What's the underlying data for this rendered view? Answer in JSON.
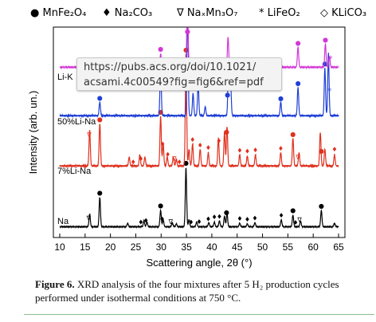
{
  "tooltip": {
    "line1": "https://pubs.acs.org/doi/10.1021/",
    "line2": "acsami.4c00549?fig=fig6&ref=pdf"
  },
  "caption": {
    "label": "Figure 6.",
    "text": "XRD analysis of the four mixtures after 5 H₂ production cycles performed under isothermal conditions at 750 °C."
  },
  "colors": {
    "Na": "#000000",
    "7%Li-Na": "#e0301e",
    "50%Li-Na": "#1f3fd6",
    "Li-K": "#d336d6",
    "separator": "#8fbf8f"
  },
  "chart_data": {
    "type": "line",
    "xlabel": "Scattering angle, 2θ (°)",
    "ylabel": "Intensity (arb. un.)",
    "xlim": [
      10,
      65
    ],
    "xticks": [
      10,
      15,
      20,
      25,
      30,
      35,
      40,
      45,
      50,
      55,
      60,
      65
    ],
    "legend": [
      {
        "marker": "●",
        "label": "MnFe₂O₄"
      },
      {
        "marker": "♦",
        "label": "Na₂CO₃"
      },
      {
        "marker": "∇",
        "label": "NaₓMn₃O₇"
      },
      {
        "marker": "*",
        "label": "LiFeO₂"
      },
      {
        "marker": "◇",
        "label": "KLiCO₃"
      }
    ],
    "series": [
      {
        "name": "Na",
        "peaks": [
          [
            15.9,
            0.22
          ],
          [
            17.9,
            0.5
          ],
          [
            23.4,
            0.06
          ],
          [
            26.6,
            0.1
          ],
          [
            27.2,
            0.08
          ],
          [
            29.9,
            0.28
          ],
          [
            30.4,
            0.12
          ],
          [
            32.2,
            0.07
          ],
          [
            33.0,
            0.05
          ],
          [
            34.9,
            1.0
          ],
          [
            35.5,
            0.12
          ],
          [
            37.0,
            0.08
          ],
          [
            39.4,
            0.07
          ],
          [
            40.5,
            0.08
          ],
          [
            41.5,
            0.1
          ],
          [
            42.5,
            0.18
          ],
          [
            43.0,
            0.22
          ],
          [
            45.5,
            0.06
          ],
          [
            47.0,
            0.05
          ],
          [
            48.5,
            0.07
          ],
          [
            53.7,
            0.12
          ],
          [
            56.0,
            0.2
          ],
          [
            57.5,
            0.1
          ],
          [
            61.6,
            0.28
          ],
          [
            64.2,
            0.06
          ]
        ],
        "markers": [
          {
            "s": "●",
            "x": 17.9
          },
          {
            "s": "●",
            "x": 29.9
          },
          {
            "s": "●",
            "x": 34.9
          },
          {
            "s": "●",
            "x": 42.9
          },
          {
            "s": "●",
            "x": 56.0
          },
          {
            "s": "●",
            "x": 61.6
          },
          {
            "s": "♦",
            "x": 26.0
          },
          {
            "s": "♦",
            "x": 27.0
          },
          {
            "s": "♦",
            "x": 30.2
          },
          {
            "s": "♦",
            "x": 35.9
          },
          {
            "s": "♦",
            "x": 37.5
          },
          {
            "s": "♦",
            "x": 39.3
          },
          {
            "s": "♦",
            "x": 40.5
          },
          {
            "s": "♦",
            "x": 41.5
          },
          {
            "s": "♦",
            "x": 45.5
          },
          {
            "s": "♦",
            "x": 47.0
          },
          {
            "s": "♦",
            "x": 48.5
          },
          {
            "s": "♦",
            "x": 53.7
          },
          {
            "s": "♦",
            "x": 56.5
          },
          {
            "s": "∇",
            "x": 15.7
          },
          {
            "s": "∇",
            "x": 31.9
          },
          {
            "s": "∇",
            "x": 57.3
          }
        ]
      },
      {
        "name": "7%Li-Na",
        "peaks": [
          [
            15.9,
            0.32
          ],
          [
            17.9,
            0.38
          ],
          [
            23.7,
            0.08
          ],
          [
            25.8,
            0.1
          ],
          [
            26.8,
            0.08
          ],
          [
            29.9,
            0.45
          ],
          [
            30.4,
            0.2
          ],
          [
            31.2,
            0.08
          ],
          [
            32.4,
            0.08
          ],
          [
            33.0,
            0.06
          ],
          [
            34.9,
            1.0
          ],
          [
            35.5,
            0.15
          ],
          [
            36.2,
            0.2
          ],
          [
            37.7,
            0.15
          ],
          [
            39.3,
            0.12
          ],
          [
            41.3,
            0.25
          ],
          [
            42.5,
            0.3
          ],
          [
            43.0,
            0.35
          ],
          [
            45.5,
            0.1
          ],
          [
            47.0,
            0.09
          ],
          [
            48.6,
            0.1
          ],
          [
            53.6,
            0.12
          ],
          [
            56.0,
            0.25
          ],
          [
            57.2,
            0.12
          ],
          [
            61.4,
            0.3
          ],
          [
            62.3,
            0.15
          ],
          [
            64.2,
            0.1
          ]
        ],
        "markers": [
          {
            "s": "●",
            "x": 17.9
          },
          {
            "s": "●",
            "x": 29.9
          },
          {
            "s": "●",
            "x": 34.9
          },
          {
            "s": "●",
            "x": 42.9
          },
          {
            "s": "●",
            "x": 56.0
          },
          {
            "s": "●",
            "x": 61.6
          },
          {
            "s": "♦",
            "x": 24.5
          },
          {
            "s": "♦",
            "x": 26.0
          },
          {
            "s": "♦",
            "x": 30.3
          },
          {
            "s": "♦",
            "x": 31.3
          },
          {
            "s": "♦",
            "x": 33.6
          },
          {
            "s": "♦",
            "x": 36.2
          },
          {
            "s": "♦",
            "x": 37.7
          },
          {
            "s": "♦",
            "x": 39.3
          },
          {
            "s": "♦",
            "x": 41.4
          },
          {
            "s": "♦",
            "x": 45.5
          },
          {
            "s": "♦",
            "x": 47.0
          },
          {
            "s": "♦",
            "x": 48.6
          },
          {
            "s": "♦",
            "x": 53.6
          },
          {
            "s": "♦",
            "x": 64.2
          },
          {
            "s": "∇",
            "x": 15.8
          },
          {
            "s": "∇",
            "x": 32.6
          },
          {
            "s": "∇",
            "x": 57.0
          }
        ]
      },
      {
        "name": "50%Li-Na",
        "peaks": [
          [
            17.9,
            0.12
          ],
          [
            29.9,
            0.45
          ],
          [
            35.2,
            1.0
          ],
          [
            36.3,
            0.2
          ],
          [
            37.3,
            0.28
          ],
          [
            38.7,
            0.08
          ],
          [
            43.3,
            0.5
          ],
          [
            43.7,
            0.3
          ],
          [
            53.6,
            0.12
          ],
          [
            57.0,
            0.25
          ],
          [
            62.3,
            0.42
          ],
          [
            63.0,
            0.55
          ]
        ],
        "markers": [
          {
            "s": "●",
            "x": 17.9
          },
          {
            "s": "●",
            "x": 29.9
          },
          {
            "s": "●",
            "x": 43.1
          },
          {
            "s": "●",
            "x": 53.6
          },
          {
            "s": "●",
            "x": 57.0
          },
          {
            "s": "●",
            "x": 62.3
          },
          {
            "s": "*",
            "x": 37.3
          },
          {
            "s": "*",
            "x": 63.2
          }
        ]
      },
      {
        "name": "Li-K",
        "peaks": [
          [
            29.9,
            0.2
          ],
          [
            35.2,
            1.0
          ],
          [
            43.2,
            0.45
          ],
          [
            53.6,
            0.08
          ],
          [
            57.0,
            0.3
          ],
          [
            62.4,
            0.35
          ],
          [
            63.2,
            0.15
          ]
        ],
        "markers": [
          {
            "s": "●",
            "x": 29.9
          },
          {
            "s": "●",
            "x": 35.2
          },
          {
            "s": "●",
            "x": 57.0
          },
          {
            "s": "●",
            "x": 62.4
          },
          {
            "s": "*",
            "x": 63.4
          }
        ]
      }
    ]
  }
}
